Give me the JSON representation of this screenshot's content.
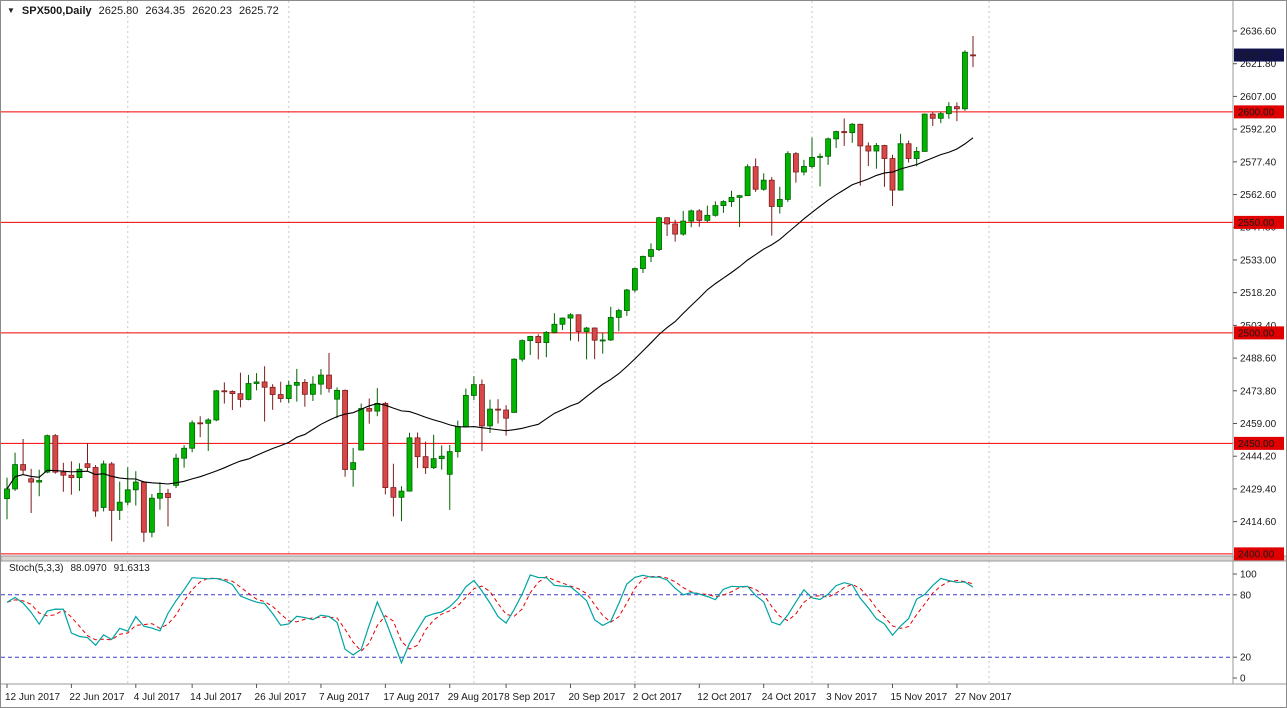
{
  "header": {
    "title": "SPX500,Daily",
    "open": "2625.80",
    "high": "2634.35",
    "low": "2620.23",
    "close": "2625.72"
  },
  "indicator_header": {
    "name": "Stoch(5,3,3)",
    "k_value": "88.0970",
    "d_value": "91.6313"
  },
  "price_axis": {
    "labels": [
      "2636.60",
      "2621.80",
      "2607.00",
      "2592.20",
      "2577.40",
      "2562.60",
      "2547.80",
      "2533.00",
      "2518.20",
      "2503.40",
      "2488.60",
      "2473.80",
      "2459.00",
      "2444.20",
      "2429.40",
      "2414.60"
    ],
    "current": "2625.72",
    "level_labels": [
      "2600.00",
      "2550.00",
      "2500.00",
      "2450.00",
      "2400.00"
    ]
  },
  "stoch_axis": [
    "100",
    "80",
    "20",
    "0"
  ],
  "time_axis": [
    {
      "label": "12 Jun 2017",
      "i": 0
    },
    {
      "label": "22 Jun 2017",
      "i": 8
    },
    {
      "label": "4 Jul 2017",
      "i": 16
    },
    {
      "label": "14 Jul 2017",
      "i": 23
    },
    {
      "label": "26 Jul 2017",
      "i": 31
    },
    {
      "label": "7 Aug 2017",
      "i": 39
    },
    {
      "label": "17 Aug 2017",
      "i": 47
    },
    {
      "label": "29 Aug 2017",
      "i": 55
    },
    {
      "label": "8 Sep 2017",
      "i": 62
    },
    {
      "label": "20 Sep 2017",
      "i": 70
    },
    {
      "label": "2 Oct 2017",
      "i": 78
    },
    {
      "label": "12 Oct 2017",
      "i": 86
    },
    {
      "label": "24 Oct 2017",
      "i": 94
    },
    {
      "label": "3 Nov 2017",
      "i": 102
    },
    {
      "label": "15 Nov 2017",
      "i": 110
    },
    {
      "label": "27 Nov 2017",
      "i": 118
    }
  ],
  "colors": {
    "bull": "#00b400",
    "bull_border": "#006200",
    "bear": "#d94848",
    "bear_border": "#7d1d1d",
    "level_line": "#f40000",
    "level_label_bg": "#e00000",
    "current_label_bg": "#13134c",
    "ma": "#000000",
    "stoch_k": "#00a3a3",
    "stoch_d": "#e80000",
    "stoch_level": "#3c3ccc",
    "grid": "#c9c9c9",
    "separator": "#d9d6d2",
    "axis_line": "#9a9a9a"
  },
  "chart_data": {
    "type": "candlestick",
    "symbol": "SPX500",
    "timeframe": "Daily",
    "title": "SPX500,Daily",
    "last_bar_ohlc": {
      "open": 2625.8,
      "high": 2634.35,
      "low": 2620.23,
      "close": 2625.72
    },
    "y_axis": {
      "min": 2400.0,
      "max": 2636.6,
      "tick_step": 14.8
    },
    "horizontal_levels": [
      2600,
      2550,
      2500,
      2450,
      2400
    ],
    "grid_month_indices": [
      15,
      35,
      58,
      78,
      100,
      122
    ],
    "overlays": [
      {
        "name": "moving-average",
        "type": "sma",
        "period": 25
      }
    ],
    "indicator_panel": {
      "type": "stochastic",
      "label": "Stoch(5,3,3)",
      "k_period": 5,
      "d_period": 3,
      "slowing": 3,
      "k_value": 88.097,
      "d_value": 91.6313,
      "levels": [
        20,
        80
      ],
      "scale": [
        0,
        100
      ]
    },
    "candles": [
      [
        "2017-06-12",
        2425.0,
        2434.5,
        2415.7,
        2429.4
      ],
      [
        "2017-06-13",
        2429.4,
        2445.8,
        2428.5,
        2440.4
      ],
      [
        "2017-06-14",
        2440.4,
        2452.0,
        2435.8,
        2437.9
      ],
      [
        "2017-06-15",
        2434.0,
        2438.5,
        2418.5,
        2432.5
      ],
      [
        "2017-06-16",
        2432.5,
        2438.1,
        2426.1,
        2433.2
      ],
      [
        "2017-06-19",
        2437.0,
        2454.0,
        2436.5,
        2453.5
      ],
      [
        "2017-06-20",
        2453.5,
        2454.2,
        2436.3,
        2437.0
      ],
      [
        "2017-06-21",
        2437.0,
        2441.2,
        2428.1,
        2435.6
      ],
      [
        "2017-06-22",
        2435.6,
        2441.9,
        2426.8,
        2434.5
      ],
      [
        "2017-06-23",
        2434.5,
        2441.0,
        2428.5,
        2438.3
      ],
      [
        "2017-06-26",
        2440.8,
        2450.1,
        2437.5,
        2439.1
      ],
      [
        "2017-06-27",
        2439.1,
        2440.2,
        2416.8,
        2419.4
      ],
      [
        "2017-06-28",
        2421.0,
        2442.2,
        2419.2,
        2440.7
      ],
      [
        "2017-06-29",
        2440.7,
        2441.6,
        2405.7,
        2419.7
      ],
      [
        "2017-06-30",
        2419.7,
        2432.7,
        2415.3,
        2423.4
      ],
      [
        "2017-07-03",
        2423.4,
        2439.2,
        2422.0,
        2429.0
      ],
      [
        "2017-07-05",
        2429.0,
        2437.4,
        2421.9,
        2432.5
      ],
      [
        "2017-07-06",
        2432.5,
        2432.9,
        2405.4,
        2409.8
      ],
      [
        "2017-07-07",
        2409.8,
        2427.1,
        2407.5,
        2425.2
      ],
      [
        "2017-07-10",
        2425.2,
        2432.4,
        2420.0,
        2427.4
      ],
      [
        "2017-07-11",
        2427.4,
        2429.4,
        2412.4,
        2425.5
      ],
      [
        "2017-07-12",
        2431.0,
        2445.3,
        2429.8,
        2443.3
      ],
      [
        "2017-07-13",
        2443.3,
        2449.2,
        2439.0,
        2447.8
      ],
      [
        "2017-07-14",
        2447.8,
        2460.4,
        2446.0,
        2459.3
      ],
      [
        "2017-07-17",
        2459.3,
        2462.3,
        2452.8,
        2459.1
      ],
      [
        "2017-07-18",
        2459.1,
        2461.4,
        2446.6,
        2460.6
      ],
      [
        "2017-07-19",
        2460.6,
        2474.2,
        2460.0,
        2473.8
      ],
      [
        "2017-07-20",
        2473.8,
        2477.6,
        2468.0,
        2473.5
      ],
      [
        "2017-07-21",
        2473.5,
        2474.0,
        2465.1,
        2472.5
      ],
      [
        "2017-07-24",
        2472.5,
        2482.0,
        2466.3,
        2469.9
      ],
      [
        "2017-07-25",
        2469.9,
        2481.0,
        2469.5,
        2477.1
      ],
      [
        "2017-07-26",
        2477.1,
        2481.8,
        2474.0,
        2477.8
      ],
      [
        "2017-07-27",
        2477.8,
        2484.9,
        2459.9,
        2475.4
      ],
      [
        "2017-07-28",
        2475.4,
        2476.8,
        2465.2,
        2472.1
      ],
      [
        "2017-07-31",
        2472.1,
        2477.9,
        2468.5,
        2470.3
      ],
      [
        "2017-08-01",
        2470.3,
        2478.4,
        2468.2,
        2476.3
      ],
      [
        "2017-08-02",
        2476.3,
        2483.7,
        2468.9,
        2477.6
      ],
      [
        "2017-08-03",
        2477.6,
        2479.1,
        2466.6,
        2472.2
      ],
      [
        "2017-08-04",
        2472.2,
        2480.4,
        2469.2,
        2476.8
      ],
      [
        "2017-08-07",
        2476.8,
        2483.6,
        2472.0,
        2480.9
      ],
      [
        "2017-08-08",
        2480.9,
        2490.9,
        2473.0,
        2474.9
      ],
      [
        "2017-08-09",
        2470.0,
        2475.3,
        2461.4,
        2474.0
      ],
      [
        "2017-08-10",
        2474.0,
        2474.4,
        2434.9,
        2438.2
      ],
      [
        "2017-08-11",
        2438.2,
        2448.0,
        2430.4,
        2441.3
      ],
      [
        "2017-08-14",
        2447.0,
        2468.0,
        2446.8,
        2465.8
      ],
      [
        "2017-08-15",
        2465.8,
        2470.3,
        2458.9,
        2464.6
      ],
      [
        "2017-08-16",
        2464.6,
        2475.0,
        2462.3,
        2468.1
      ],
      [
        "2017-08-17",
        2468.1,
        2468.8,
        2426.9,
        2430.0
      ],
      [
        "2017-08-18",
        2430.0,
        2440.8,
        2416.9,
        2425.6
      ],
      [
        "2017-08-21",
        2425.6,
        2430.6,
        2414.8,
        2428.4
      ],
      [
        "2017-08-22",
        2428.4,
        2454.8,
        2428.3,
        2452.5
      ],
      [
        "2017-08-23",
        2452.5,
        2454.9,
        2438.8,
        2444.0
      ],
      [
        "2017-08-24",
        2444.0,
        2450.8,
        2436.2,
        2439.0
      ],
      [
        "2017-08-25",
        2439.0,
        2453.9,
        2438.4,
        2443.1
      ],
      [
        "2017-08-28",
        2443.1,
        2449.1,
        2438.1,
        2444.2
      ],
      [
        "2017-08-29",
        2436.0,
        2449.3,
        2419.9,
        2446.3
      ],
      [
        "2017-08-30",
        2446.3,
        2460.3,
        2443.6,
        2457.6
      ],
      [
        "2017-08-31",
        2457.6,
        2474.8,
        2457.4,
        2471.7
      ],
      [
        "2017-09-01",
        2471.7,
        2480.4,
        2469.6,
        2476.6
      ],
      [
        "2017-09-05",
        2476.6,
        2478.9,
        2446.5,
        2457.9
      ],
      [
        "2017-09-06",
        2457.9,
        2469.8,
        2454.7,
        2465.5
      ],
      [
        "2017-09-07",
        2465.5,
        2470.0,
        2459.0,
        2465.1
      ],
      [
        "2017-09-08",
        2465.1,
        2467.3,
        2453.5,
        2461.4
      ],
      [
        "2017-09-11",
        2464.0,
        2488.5,
        2463.8,
        2488.1
      ],
      [
        "2017-09-12",
        2488.1,
        2497.0,
        2487.0,
        2496.5
      ],
      [
        "2017-09-13",
        2496.5,
        2498.7,
        2490.0,
        2498.4
      ],
      [
        "2017-09-14",
        2498.4,
        2499.4,
        2488.0,
        2495.6
      ],
      [
        "2017-09-15",
        2495.6,
        2500.8,
        2489.0,
        2500.2
      ],
      [
        "2017-09-18",
        2500.2,
        2508.9,
        2499.7,
        2503.9
      ],
      [
        "2017-09-19",
        2503.9,
        2507.0,
        2501.3,
        2506.7
      ],
      [
        "2017-09-20",
        2506.7,
        2508.9,
        2496.5,
        2508.2
      ],
      [
        "2017-09-21",
        2508.2,
        2508.4,
        2496.1,
        2500.6
      ],
      [
        "2017-09-22",
        2500.6,
        2502.7,
        2488.0,
        2502.2
      ],
      [
        "2017-09-25",
        2502.2,
        2502.5,
        2488.1,
        2496.7
      ],
      [
        "2017-09-26",
        2496.7,
        2500.1,
        2490.6,
        2496.8
      ],
      [
        "2017-09-27",
        2496.8,
        2511.8,
        2496.4,
        2507.0
      ],
      [
        "2017-09-28",
        2507.0,
        2510.9,
        2500.7,
        2510.1
      ],
      [
        "2017-09-29",
        2510.1,
        2519.9,
        2507.7,
        2519.4
      ],
      [
        "2017-10-02",
        2519.4,
        2529.5,
        2518.3,
        2529.1
      ],
      [
        "2017-10-03",
        2529.1,
        2535.0,
        2527.1,
        2534.6
      ],
      [
        "2017-10-04",
        2534.6,
        2540.5,
        2532.0,
        2537.7
      ],
      [
        "2017-10-05",
        2537.7,
        2552.5,
        2537.0,
        2552.1
      ],
      [
        "2017-10-06",
        2552.1,
        2552.4,
        2543.8,
        2549.3
      ],
      [
        "2017-10-09",
        2549.3,
        2551.2,
        2541.3,
        2544.7
      ],
      [
        "2017-10-10",
        2544.7,
        2555.2,
        2544.0,
        2550.6
      ],
      [
        "2017-10-11",
        2550.6,
        2555.8,
        2547.8,
        2555.2
      ],
      [
        "2017-10-12",
        2555.2,
        2556.0,
        2548.0,
        2550.9
      ],
      [
        "2017-10-13",
        2550.9,
        2557.6,
        2550.1,
        2553.2
      ],
      [
        "2017-10-16",
        2553.2,
        2559.5,
        2552.6,
        2557.6
      ],
      [
        "2017-10-17",
        2557.6,
        2560.0,
        2554.3,
        2559.4
      ],
      [
        "2017-10-18",
        2559.4,
        2564.3,
        2557.0,
        2561.3
      ],
      [
        "2017-10-19",
        2561.3,
        2562.4,
        2547.9,
        2562.1
      ],
      [
        "2017-10-20",
        2562.1,
        2576.3,
        2561.9,
        2575.2
      ],
      [
        "2017-10-23",
        2575.2,
        2578.9,
        2563.8,
        2565.0
      ],
      [
        "2017-10-24",
        2565.0,
        2572.2,
        2564.3,
        2569.1
      ],
      [
        "2017-10-25",
        2569.1,
        2570.5,
        2544.0,
        2557.2
      ],
      [
        "2017-10-26",
        2557.2,
        2566.1,
        2554.0,
        2560.4
      ],
      [
        "2017-10-27",
        2560.4,
        2582.2,
        2559.3,
        2581.1
      ],
      [
        "2017-10-30",
        2581.1,
        2581.8,
        2568.0,
        2572.8
      ],
      [
        "2017-10-31",
        2572.8,
        2578.3,
        2571.3,
        2575.3
      ],
      [
        "2017-11-01",
        2575.3,
        2588.4,
        2574.4,
        2579.4
      ],
      [
        "2017-11-02",
        2579.4,
        2581.2,
        2566.3,
        2579.9
      ],
      [
        "2017-11-03",
        2579.9,
        2588.4,
        2576.0,
        2587.8
      ],
      [
        "2017-11-06",
        2587.8,
        2591.5,
        2583.7,
        2591.1
      ],
      [
        "2017-11-07",
        2591.1,
        2597.0,
        2584.6,
        2590.6
      ],
      [
        "2017-11-08",
        2590.6,
        2595.0,
        2586.0,
        2594.4
      ],
      [
        "2017-11-09",
        2594.4,
        2594.6,
        2566.6,
        2584.6
      ],
      [
        "2017-11-10",
        2584.6,
        2586.2,
        2575.5,
        2582.3
      ],
      [
        "2017-11-13",
        2582.3,
        2585.9,
        2574.3,
        2584.8
      ],
      [
        "2017-11-14",
        2584.8,
        2585.1,
        2566.1,
        2578.9
      ],
      [
        "2017-11-15",
        2578.9,
        2580.6,
        2557.4,
        2564.6
      ],
      [
        "2017-11-16",
        2564.6,
        2590.1,
        2564.5,
        2585.6
      ],
      [
        "2017-11-17",
        2585.6,
        2587.0,
        2577.1,
        2578.9
      ],
      [
        "2017-11-20",
        2578.9,
        2584.1,
        2575.4,
        2582.1
      ],
      [
        "2017-11-21",
        2582.1,
        2599.2,
        2582.0,
        2599.0
      ],
      [
        "2017-11-22",
        2599.0,
        2600.0,
        2593.6,
        2597.1
      ],
      [
        "2017-11-23",
        2597.1,
        2600.2,
        2594.9,
        2599.2
      ],
      [
        "2017-11-24",
        2599.2,
        2604.4,
        2596.9,
        2602.4
      ],
      [
        "2017-11-27",
        2602.4,
        2604.3,
        2595.8,
        2601.4
      ],
      [
        "2017-11-28",
        2601.4,
        2627.9,
        2600.5,
        2627.0
      ],
      [
        "2017-11-29",
        2625.8,
        2634.35,
        2620.23,
        2625.72
      ]
    ]
  }
}
